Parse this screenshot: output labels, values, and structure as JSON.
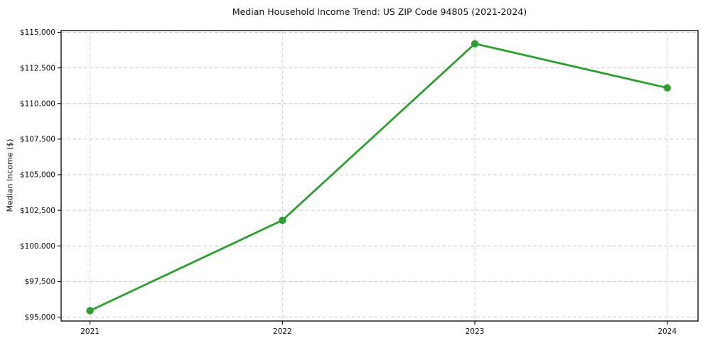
{
  "figure": {
    "title": "Median Household Income Trend: US ZIP Code 94805 (2021-2024)"
  },
  "chart_data": {
    "type": "line",
    "title": "Median Household Income Trend: US ZIP Code 94805 (2021-2024)",
    "xlabel": "",
    "ylabel": "Median Income ($)",
    "series": [
      {
        "name": "Median Household Income",
        "x": [
          2021,
          2022,
          2023,
          2024
        ],
        "values": [
          95450,
          101800,
          114200,
          111100
        ]
      }
    ],
    "xticks": [
      {
        "value": 2021,
        "label": "2021"
      },
      {
        "value": 2022,
        "label": "2022"
      },
      {
        "value": 2023,
        "label": "2023"
      },
      {
        "value": 2024,
        "label": "2024"
      }
    ],
    "yticks": [
      {
        "value": 95000,
        "label": "$95,000"
      },
      {
        "value": 97500,
        "label": "$97,500"
      },
      {
        "value": 100000,
        "label": "$100,000"
      },
      {
        "value": 102500,
        "label": "$102,500"
      },
      {
        "value": 105000,
        "label": "$105,000"
      },
      {
        "value": 107500,
        "label": "$107,500"
      },
      {
        "value": 110000,
        "label": "$110,000"
      },
      {
        "value": 112500,
        "label": "$112,500"
      },
      {
        "value": 115000,
        "label": "$115,000"
      }
    ],
    "xlim": [
      2020.85,
      2024.16
    ],
    "ylim": [
      94725,
      115125
    ],
    "grid": true,
    "grid_style": "dashed",
    "legend": false,
    "colors": {
      "line": "#2ca02c",
      "marker": "#2ca02c",
      "grid": "#cccccc",
      "spine": "#000000",
      "text": "#111111",
      "background": "#ffffff"
    }
  }
}
